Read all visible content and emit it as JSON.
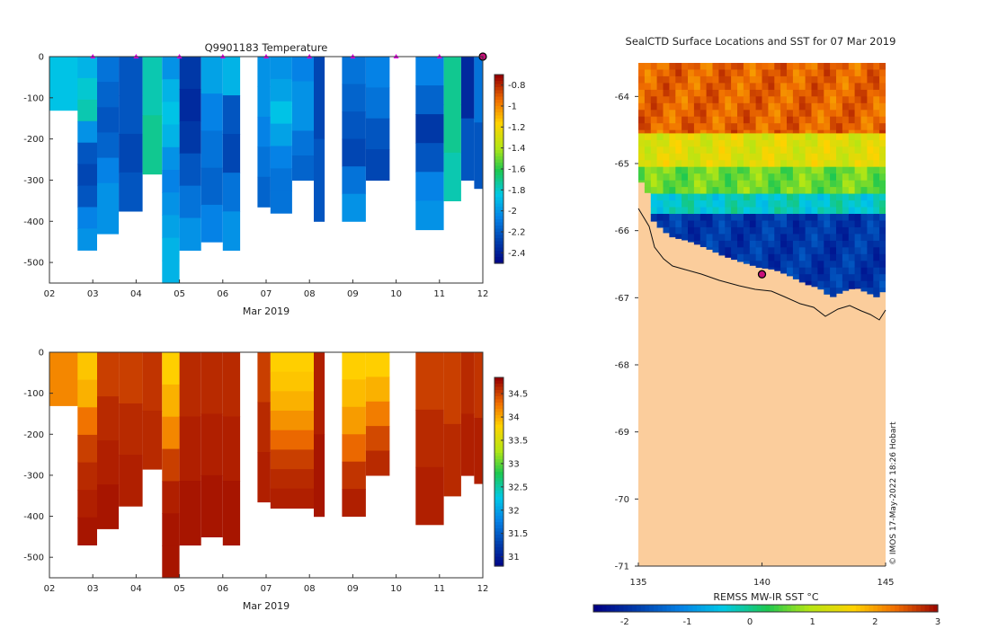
{
  "chart_data": [
    {
      "type": "heatmap",
      "title": "Q9901183  Temperature",
      "xlabel": "Mar 2019",
      "x_ticks": [
        "02",
        "03",
        "04",
        "05",
        "06",
        "07",
        "08",
        "09",
        "10",
        "11",
        "12"
      ],
      "x_range_days": [
        2,
        12
      ],
      "y_ticks": [
        "0",
        "-100",
        "-200",
        "-300",
        "-400",
        "-500"
      ],
      "y_range_m": [
        -550,
        0
      ],
      "colorbar_ticks": [
        "-0.8",
        "-1",
        "-1.2",
        "-1.4",
        "-1.6",
        "-1.8",
        "-2",
        "-2.2",
        "-2.4"
      ],
      "colorbar_range": [
        -2.5,
        -0.7
      ],
      "surface_markers_days": [
        3,
        4,
        5,
        6,
        7,
        8,
        9,
        10,
        11
      ],
      "profiles": [
        {
          "day": 2.0,
          "end": 2.7,
          "max_depth": 130,
          "values": [
            -1.85
          ]
        },
        {
          "day": 2.65,
          "end": 3.1,
          "max_depth": 470,
          "values": [
            -1.9,
            -1.8,
            -1.75,
            -2.0,
            -2.2,
            -2.25,
            -2.2,
            -2.05,
            -2.0
          ]
        },
        {
          "day": 3.1,
          "end": 3.6,
          "max_depth": 430,
          "values": [
            -2.1,
            -2.15,
            -2.2,
            -2.15,
            -2.05,
            -2.0,
            -2.0
          ]
        },
        {
          "day": 3.6,
          "end": 4.15,
          "max_depth": 375,
          "values": [
            -2.2,
            -2.2,
            -2.25,
            -2.2
          ]
        },
        {
          "day": 4.15,
          "end": 4.6,
          "max_depth": 285,
          "values": [
            -1.75,
            -1.7
          ]
        },
        {
          "day": 4.6,
          "end": 5.0,
          "max_depth": 550,
          "values": [
            -2.0,
            -1.9,
            -1.85,
            -1.9,
            -2.0,
            -2.05,
            -2.0,
            -1.95,
            -1.9,
            -1.9
          ]
        },
        {
          "day": 5.0,
          "end": 5.5,
          "max_depth": 470,
          "values": [
            -2.3,
            -2.35,
            -2.3,
            -2.2,
            -2.1,
            -2.0
          ]
        },
        {
          "day": 5.5,
          "end": 6.0,
          "max_depth": 450,
          "values": [
            -1.95,
            -2.05,
            -2.1,
            -2.15,
            -2.05
          ]
        },
        {
          "day": 6.0,
          "end": 6.4,
          "max_depth": 470,
          "values": [
            -1.9,
            -2.2,
            -2.25,
            -2.1,
            -2.0
          ]
        },
        {
          "day": 6.8,
          "end": 7.1,
          "max_depth": 365,
          "values": [
            -2.0,
            -2.0,
            -2.05,
            -2.1,
            -2.15
          ]
        },
        {
          "day": 7.1,
          "end": 7.6,
          "max_depth": 380,
          "values": [
            -2.0,
            -1.95,
            -1.85,
            -1.95,
            -2.05,
            -2.1,
            -2.1
          ]
        },
        {
          "day": 7.6,
          "end": 8.1,
          "max_depth": 300,
          "values": [
            -2.05,
            -2.0,
            -2.0,
            -2.1,
            -2.15
          ]
        },
        {
          "day": 8.1,
          "end": 8.35,
          "max_depth": 400,
          "values": [
            -2.25,
            -2.2
          ]
        },
        {
          "day": 8.75,
          "end": 9.3,
          "max_depth": 400,
          "values": [
            -2.1,
            -2.15,
            -2.2,
            -2.25,
            -2.1,
            -2.0
          ]
        },
        {
          "day": 9.3,
          "end": 9.85,
          "max_depth": 300,
          "values": [
            -2.05,
            -2.1,
            -2.2,
            -2.25
          ]
        },
        {
          "day": 10.45,
          "end": 11.1,
          "max_depth": 420,
          "values": [
            -2.05,
            -2.15,
            -2.3,
            -2.2,
            -2.05,
            -2.0
          ]
        },
        {
          "day": 11.1,
          "end": 11.5,
          "max_depth": 350,
          "values": [
            -1.7,
            -1.7,
            -1.75
          ]
        },
        {
          "day": 11.5,
          "end": 11.8,
          "max_depth": 300,
          "values": [
            -2.35,
            -2.2
          ]
        },
        {
          "day": 11.8,
          "end": 12.0,
          "max_depth": 320,
          "values": [
            -2.1,
            -2.2
          ]
        }
      ]
    },
    {
      "type": "heatmap",
      "title": "",
      "xlabel": "Mar 2019",
      "x_ticks": [
        "02",
        "03",
        "04",
        "05",
        "06",
        "07",
        "08",
        "09",
        "10",
        "11",
        "12"
      ],
      "x_range_days": [
        2,
        12
      ],
      "y_ticks": [
        "0",
        "-100",
        "-200",
        "-300",
        "-400",
        "-500"
      ],
      "y_range_m": [
        -550,
        0
      ],
      "colorbar_ticks": [
        "34.5",
        "34",
        "33.5",
        "33",
        "32.5",
        "32",
        "31.5",
        "31"
      ],
      "colorbar_range": [
        30.8,
        34.85
      ],
      "profiles": [
        {
          "day": 2.0,
          "end": 2.7,
          "max_depth": 130,
          "values": [
            34.2
          ]
        },
        {
          "day": 2.65,
          "end": 3.1,
          "max_depth": 470,
          "values": [
            33.9,
            34.0,
            34.3,
            34.55,
            34.65,
            34.7,
            34.75
          ]
        },
        {
          "day": 3.1,
          "end": 3.6,
          "max_depth": 430,
          "values": [
            34.55,
            34.65,
            34.7,
            34.75
          ]
        },
        {
          "day": 3.6,
          "end": 4.15,
          "max_depth": 375,
          "values": [
            34.55,
            34.65,
            34.7
          ]
        },
        {
          "day": 4.15,
          "end": 4.6,
          "max_depth": 285,
          "values": [
            34.6,
            34.65
          ]
        },
        {
          "day": 4.6,
          "end": 5.0,
          "max_depth": 550,
          "values": [
            33.85,
            34.0,
            34.2,
            34.55,
            34.7,
            34.75,
            34.75
          ]
        },
        {
          "day": 5.0,
          "end": 5.5,
          "max_depth": 470,
          "values": [
            34.65,
            34.7,
            34.75
          ]
        },
        {
          "day": 5.5,
          "end": 6.0,
          "max_depth": 450,
          "values": [
            34.65,
            34.7,
            34.75
          ]
        },
        {
          "day": 6.0,
          "end": 6.4,
          "max_depth": 470,
          "values": [
            34.65,
            34.7,
            34.75
          ]
        },
        {
          "day": 6.8,
          "end": 7.1,
          "max_depth": 365,
          "values": [
            34.55,
            34.65,
            34.7
          ]
        },
        {
          "day": 7.1,
          "end": 8.1,
          "max_depth": 380,
          "values": [
            33.85,
            33.9,
            34.0,
            34.15,
            34.35,
            34.55,
            34.65,
            34.7
          ]
        },
        {
          "day": 8.1,
          "end": 8.35,
          "max_depth": 400,
          "values": [
            34.7,
            34.75
          ]
        },
        {
          "day": 8.75,
          "end": 9.3,
          "max_depth": 400,
          "values": [
            33.85,
            33.95,
            34.1,
            34.35,
            34.6,
            34.7
          ]
        },
        {
          "day": 9.3,
          "end": 9.85,
          "max_depth": 300,
          "values": [
            33.85,
            34.0,
            34.25,
            34.5,
            34.65
          ]
        },
        {
          "day": 10.45,
          "end": 11.1,
          "max_depth": 420,
          "values": [
            34.55,
            34.65,
            34.7
          ]
        },
        {
          "day": 11.1,
          "end": 11.5,
          "max_depth": 350,
          "values": [
            34.55,
            34.65
          ]
        },
        {
          "day": 11.5,
          "end": 11.8,
          "max_depth": 300,
          "values": [
            34.65,
            34.7
          ]
        },
        {
          "day": 11.8,
          "end": 12.0,
          "max_depth": 320,
          "values": [
            34.6,
            34.7
          ]
        }
      ]
    },
    {
      "type": "heatmap",
      "title": "SealCTD Surface Locations and SST for 07 Mar 2019",
      "x_ticks": [
        "135",
        "140",
        "145"
      ],
      "x_range_lon": [
        135,
        145
      ],
      "y_ticks": [
        "-64",
        "-65",
        "-66",
        "-67",
        "-68",
        "-69",
        "-70",
        "-71"
      ],
      "y_range_lat": [
        -71,
        -63.5
      ],
      "colorbar_label": "REMSS MW-IR SST °C",
      "colorbar_ticks": [
        "-2",
        "-1",
        "0",
        "1",
        "2",
        "3"
      ],
      "colorbar_range": [
        -2.5,
        3.0
      ],
      "seal_location": {
        "lon": 140.0,
        "lat": -66.65
      },
      "sst_bands": [
        {
          "lat_top": -63.5,
          "lat_bottom": -64.55,
          "sst": 2.35
        },
        {
          "lat_top": -64.55,
          "lat_bottom": -65.05,
          "sst": 1.3
        },
        {
          "lat_top": -65.05,
          "lat_bottom": -65.45,
          "sst": 0.6
        },
        {
          "lat_top": -65.45,
          "lat_bottom": -65.75,
          "sst": -0.3
        },
        {
          "lat_top": -65.75,
          "lat_bottom": -67.0,
          "sst": -1.9
        }
      ],
      "copyright": "© IMOS 17-May-2022 18:26 Hobart"
    }
  ]
}
